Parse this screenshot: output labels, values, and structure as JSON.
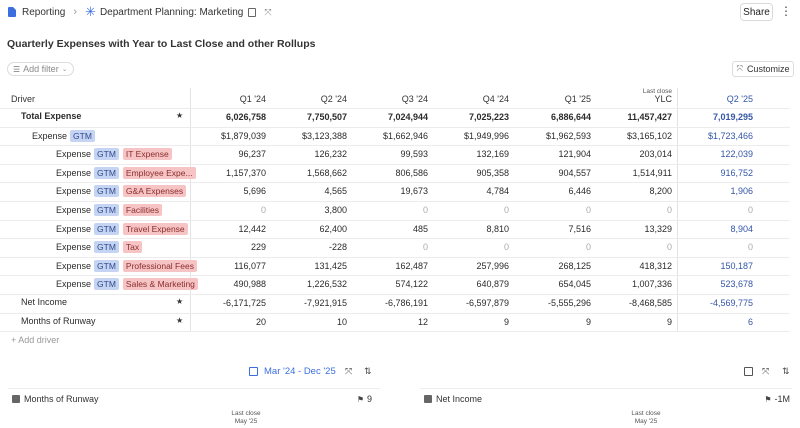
{
  "breadcrumb": {
    "root": "Reporting",
    "page": "Department Planning: Marketing"
  },
  "share_label": "Share",
  "title": "Quarterly Expenses with Year to Last Close and other Rollups",
  "filter_label": "Add filter",
  "customize_label": "Customize",
  "table": {
    "driver_header": "Driver",
    "last_close_note": "Last close",
    "columns": [
      "Q1 '24",
      "Q2 '24",
      "Q3 '24",
      "Q4 '24",
      "Q1 '25",
      "YLC",
      "Q2 '25"
    ],
    "rows": [
      {
        "name": "Total Expense",
        "level": 0,
        "bold": true,
        "star": true,
        "tags": [],
        "values": [
          "6,026,758",
          "7,750,507",
          "7,024,944",
          "7,025,223",
          "6,886,644",
          "11,457,427",
          "7,019,295"
        ]
      },
      {
        "name": "Expense",
        "level": 1,
        "tags": [
          {
            "text": "GTM",
            "kind": "blue"
          }
        ],
        "values": [
          "$1,879,039",
          "$3,123,388",
          "$1,662,946",
          "$1,949,996",
          "$1,962,593",
          "$3,165,102",
          "$1,723,466"
        ]
      },
      {
        "name": "Expense",
        "level": 2,
        "tags": [
          {
            "text": "GTM",
            "kind": "blue"
          },
          {
            "text": "IT Expense",
            "kind": "red"
          }
        ],
        "values": [
          "96,237",
          "126,232",
          "99,593",
          "132,169",
          "121,904",
          "203,014",
          "122,039"
        ]
      },
      {
        "name": "Expense",
        "level": 2,
        "tags": [
          {
            "text": "GTM",
            "kind": "blue"
          },
          {
            "text": "Employee Expe...",
            "kind": "red"
          }
        ],
        "values": [
          "1,157,370",
          "1,568,662",
          "806,586",
          "905,358",
          "904,557",
          "1,514,911",
          "916,752"
        ]
      },
      {
        "name": "Expense",
        "level": 2,
        "tags": [
          {
            "text": "GTM",
            "kind": "blue"
          },
          {
            "text": "G&A Expenses",
            "kind": "red"
          }
        ],
        "values": [
          "5,696",
          "4,565",
          "19,673",
          "4,784",
          "6,446",
          "8,200",
          "1,906"
        ]
      },
      {
        "name": "Expense",
        "level": 2,
        "tags": [
          {
            "text": "GTM",
            "kind": "blue"
          },
          {
            "text": "Facilities",
            "kind": "red"
          }
        ],
        "values": [
          "0",
          "3,800",
          "0",
          "0",
          "0",
          "0",
          "0"
        ]
      },
      {
        "name": "Expense",
        "level": 2,
        "tags": [
          {
            "text": "GTM",
            "kind": "blue"
          },
          {
            "text": "Travel Expense",
            "kind": "red"
          }
        ],
        "values": [
          "12,442",
          "62,400",
          "485",
          "8,810",
          "7,516",
          "13,329",
          "8,904"
        ]
      },
      {
        "name": "Expense",
        "level": 2,
        "tags": [
          {
            "text": "GTM",
            "kind": "blue"
          },
          {
            "text": "Tax",
            "kind": "red"
          }
        ],
        "values": [
          "229",
          "-228",
          "0",
          "0",
          "0",
          "0",
          "0"
        ]
      },
      {
        "name": "Expense",
        "level": 2,
        "tags": [
          {
            "text": "GTM",
            "kind": "blue"
          },
          {
            "text": "Professional Fees",
            "kind": "red"
          }
        ],
        "values": [
          "116,077",
          "131,425",
          "162,487",
          "257,996",
          "268,125",
          "418,312",
          "150,187"
        ]
      },
      {
        "name": "Expense",
        "level": 2,
        "tags": [
          {
            "text": "GTM",
            "kind": "blue"
          },
          {
            "text": "Sales & Marketing",
            "kind": "red"
          }
        ],
        "values": [
          "490,988",
          "1,226,532",
          "574,122",
          "640,879",
          "654,045",
          "1,007,336",
          "523,678"
        ]
      },
      {
        "name": "Net Income",
        "level": 0,
        "star": true,
        "tags": [],
        "values": [
          "-6,171,725",
          "-7,921,915",
          "-6,786,191",
          "-6,597,879",
          "-5,555,296",
          "-8,468,585",
          "-4,569,775"
        ]
      },
      {
        "name": "Months of Runway",
        "level": 0,
        "star": true,
        "tags": [],
        "values": [
          "20",
          "10",
          "12",
          "9",
          "9",
          "9",
          "6"
        ]
      }
    ]
  },
  "add_driver_label": "+ Add driver",
  "date_range": "Mar '24 - Dec '25",
  "cards": [
    {
      "title": "Months of Runway",
      "value": "9",
      "last_close": "Last close",
      "last_close_date": "May '25"
    },
    {
      "title": "Net Income",
      "value": "-1M",
      "last_close": "Last close",
      "last_close_date": "May '25"
    }
  ],
  "colors": {
    "accent": "#3b6fe0",
    "projection": "#3456a8",
    "tag_blue": "#c6d4f4",
    "tag_red": "#f6c4c4"
  }
}
